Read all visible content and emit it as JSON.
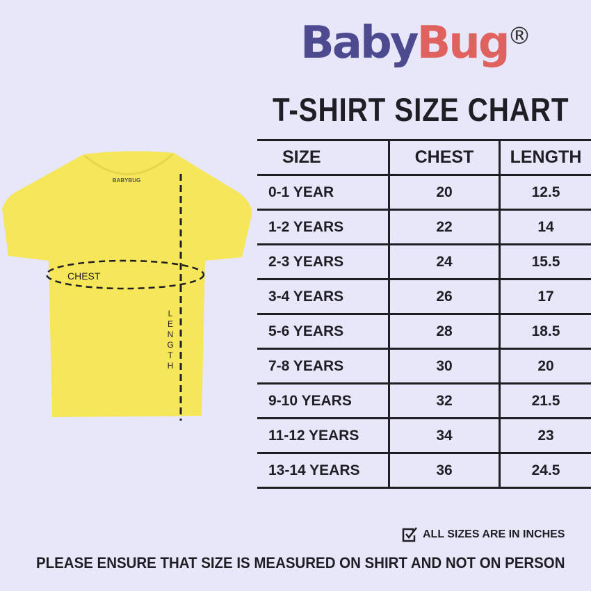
{
  "brand": {
    "part1": "Baby",
    "part2": "Bug",
    "registered": "®",
    "shirt_label": "BABYBUG"
  },
  "title": "T-SHIRT SIZE CHART",
  "colors": {
    "background": "#e8e6f9",
    "brand_purple": "#4d4a8f",
    "brand_coral": "#e0625f",
    "shirt": "#f5e65a"
  },
  "diagram": {
    "chest_label": "CHEST",
    "length_label": "LENGTH"
  },
  "table": {
    "headers": [
      "SIZE",
      "CHEST",
      "LENGTH"
    ],
    "rows": [
      [
        "0-1 YEAR",
        "20",
        "12.5"
      ],
      [
        "1-2 YEARS",
        "22",
        "14"
      ],
      [
        "2-3 YEARS",
        "24",
        "15.5"
      ],
      [
        "3-4 YEARS",
        "26",
        "17"
      ],
      [
        "5-6 YEARS",
        "28",
        "18.5"
      ],
      [
        "7-8 YEARS",
        "30",
        "20"
      ],
      [
        "9-10 YEARS",
        "32",
        "21.5"
      ],
      [
        "11-12 YEARS",
        "34",
        "23"
      ],
      [
        "13-14 YEARS",
        "36",
        "24.5"
      ]
    ]
  },
  "note": {
    "icon": "checkbox-checked-icon",
    "text": "ALL SIZES ARE IN INCHES"
  },
  "footer": "PLEASE ENSURE THAT SIZE IS MEASURED ON SHIRT AND NOT ON PERSON"
}
